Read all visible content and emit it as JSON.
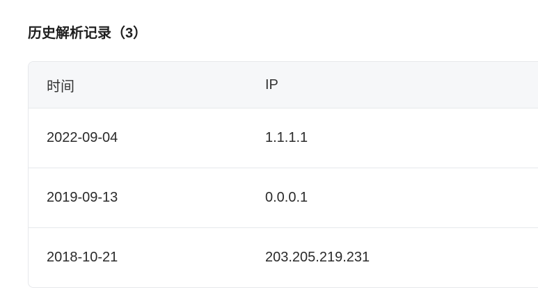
{
  "title": "历史解析记录（3）",
  "table": {
    "headers": [
      "时间",
      "IP"
    ],
    "rows": [
      [
        "2022-09-04",
        "1.1.1.1"
      ],
      [
        "2019-09-13",
        "0.0.0.1"
      ],
      [
        "2018-10-21",
        "203.205.219.231"
      ]
    ]
  }
}
